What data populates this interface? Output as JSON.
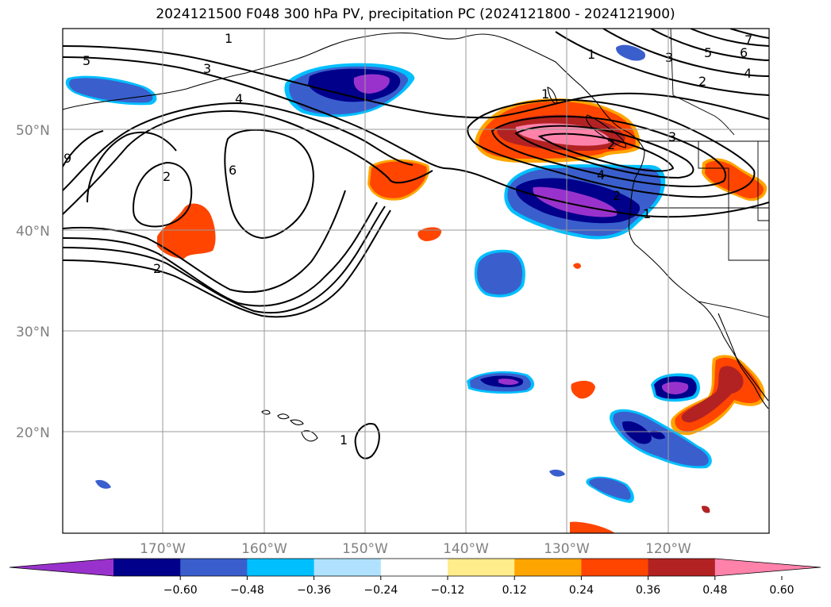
{
  "title": "2024121500 F048 300 hPa PV, precipitation PC (2024121800 - 2024121900)",
  "map": {
    "lon_range": [
      -180,
      -110
    ],
    "lat_range": [
      10,
      60
    ],
    "latitude_ticks": [
      "20°N",
      "30°N",
      "40°N",
      "50°N"
    ],
    "longitude_ticks": [
      "170°W",
      "160°W",
      "150°W",
      "140°W",
      "130°W",
      "120°W"
    ],
    "grid": true,
    "contour_variable": "300 hPa PV",
    "fill_variable": "precipitation PC"
  },
  "contour_labels": [
    "5",
    "3",
    "4",
    "1",
    "2",
    "9",
    "6",
    "2",
    "2",
    "1",
    "3",
    "5",
    "6",
    "7",
    "4",
    "2",
    "1",
    "3",
    "4",
    "2",
    "1",
    "1"
  ],
  "colorbar": {
    "ticks": [
      "−0.60",
      "−0.48",
      "−0.36",
      "−0.24",
      "−0.12",
      "0.12",
      "0.24",
      "0.36",
      "0.48",
      "0.60"
    ],
    "colors": [
      "#9932CC",
      "#00008B",
      "#3A5FCD",
      "#00BFFF",
      "#B0E2FF",
      "#FFFFFF",
      "#FFEC8B",
      "#FFA500",
      "#FF4500",
      "#B22222",
      "#FF82AB"
    ]
  }
}
